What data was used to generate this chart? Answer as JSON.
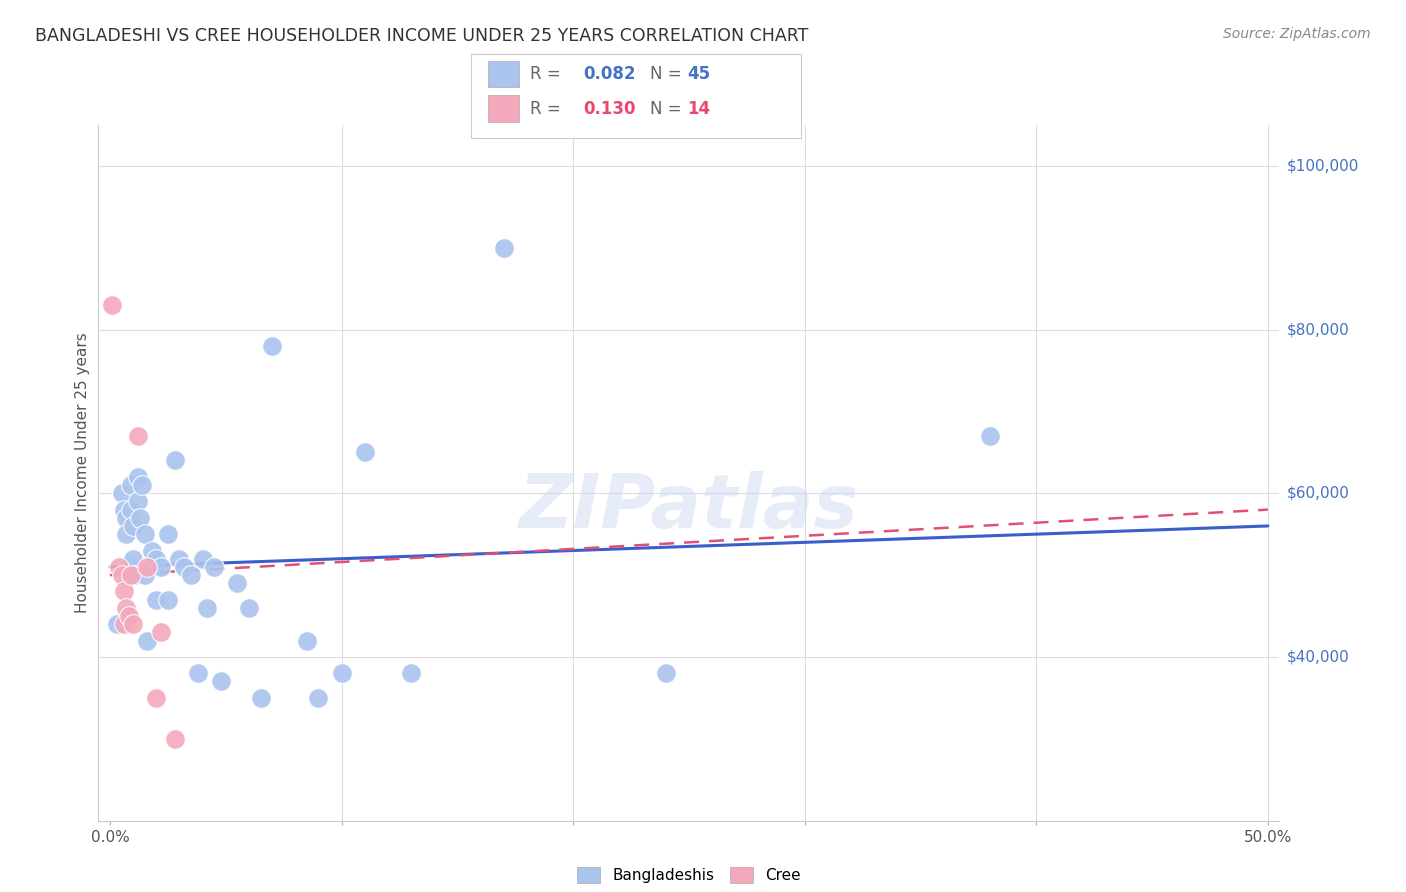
{
  "title": "BANGLADESHI VS CREE HOUSEHOLDER INCOME UNDER 25 YEARS CORRELATION CHART",
  "source": "Source: ZipAtlas.com",
  "ylabel": "Householder Income Under 25 years",
  "ylim": [
    20000,
    105000
  ],
  "xlim": [
    -0.005,
    0.505
  ],
  "bg_color": "#ffffff",
  "grid_color": "#dddddd",
  "legend_r_blue": "0.082",
  "legend_n_blue": "45",
  "legend_r_pink": "0.130",
  "legend_n_pink": "14",
  "blue_color": "#aac4ee",
  "pink_color": "#f4a8bc",
  "line_blue_color": "#3a5fcd",
  "line_pink_color": "#e05070",
  "text_blue": "#4472c4",
  "text_pink": "#e84a6f",
  "right_label_color": "#4472c4",
  "blue_x": [
    0.003,
    0.005,
    0.006,
    0.007,
    0.007,
    0.008,
    0.009,
    0.009,
    0.01,
    0.01,
    0.011,
    0.012,
    0.012,
    0.013,
    0.014,
    0.015,
    0.015,
    0.016,
    0.018,
    0.02,
    0.02,
    0.022,
    0.025,
    0.025,
    0.028,
    0.03,
    0.032,
    0.035,
    0.038,
    0.04,
    0.042,
    0.045,
    0.048,
    0.055,
    0.06,
    0.065,
    0.07,
    0.085,
    0.09,
    0.1,
    0.11,
    0.13,
    0.17,
    0.24,
    0.38
  ],
  "blue_y": [
    44000,
    60000,
    58000,
    57000,
    55000,
    51000,
    61000,
    58000,
    56000,
    52000,
    50000,
    62000,
    59000,
    57000,
    61000,
    55000,
    50000,
    42000,
    53000,
    52000,
    47000,
    51000,
    55000,
    47000,
    64000,
    52000,
    51000,
    50000,
    38000,
    52000,
    46000,
    51000,
    37000,
    49000,
    46000,
    35000,
    78000,
    42000,
    35000,
    38000,
    65000,
    38000,
    90000,
    38000,
    67000
  ],
  "pink_x": [
    0.001,
    0.004,
    0.005,
    0.006,
    0.006,
    0.007,
    0.008,
    0.009,
    0.01,
    0.012,
    0.016,
    0.02,
    0.022,
    0.028
  ],
  "pink_y": [
    83000,
    51000,
    50000,
    48000,
    44000,
    46000,
    45000,
    50000,
    44000,
    67000,
    51000,
    35000,
    43000,
    30000
  ],
  "blue_trendline_x": [
    0.0,
    0.5
  ],
  "blue_trendline_y": [
    51000,
    56000
  ],
  "pink_trendline_x": [
    0.0,
    0.5
  ],
  "pink_trendline_y": [
    50000,
    58000
  ],
  "right_labels": {
    "100000": "$100,000",
    "80000": "$80,000",
    "60000": "$60,000",
    "40000": "$40,000"
  },
  "grid_hlines": [
    40000,
    60000,
    80000,
    100000
  ],
  "grid_vlines": [
    0.1,
    0.2,
    0.3,
    0.4,
    0.5
  ]
}
